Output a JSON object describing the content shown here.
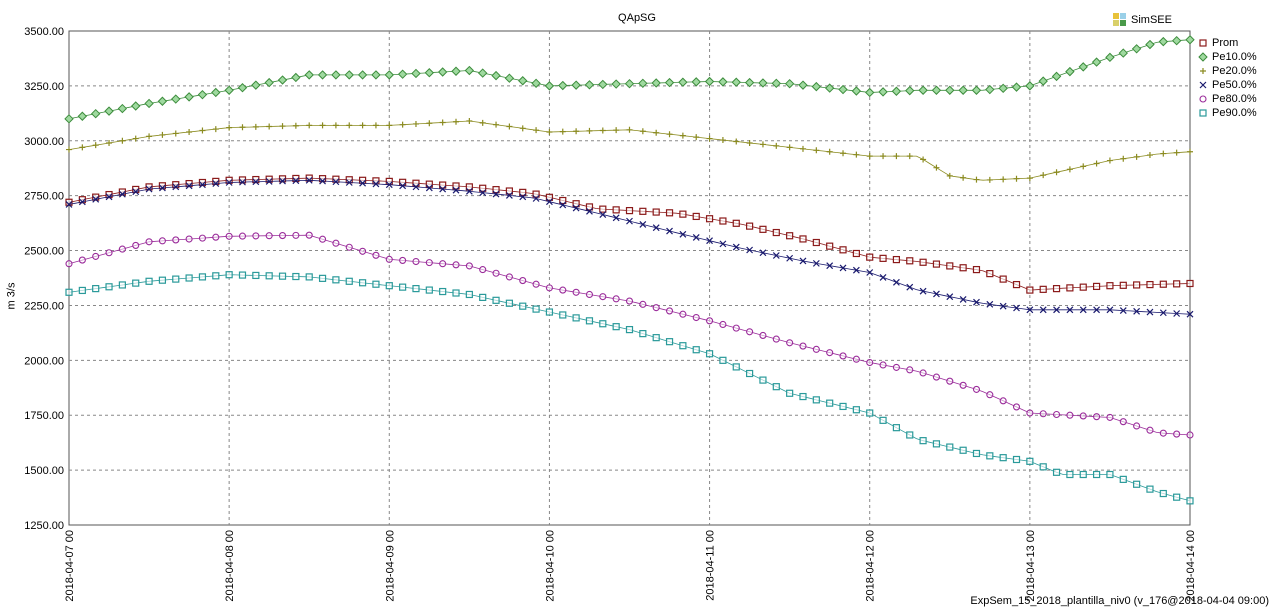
{
  "chart_data": {
    "type": "line",
    "title": "QApSG",
    "ylabel": "m 3/s",
    "xlabel": "",
    "ylim": [
      1250,
      3500
    ],
    "yticks": [
      "1250.00",
      "1500.00",
      "1750.00",
      "2000.00",
      "2250.00",
      "2500.00",
      "2750.00",
      "3000.00",
      "3250.00",
      "3500.00"
    ],
    "x_tick_labels": [
      "2018-04-07 00",
      "2018-04-08 00",
      "2018-04-09 00",
      "2018-04-10 00",
      "2018-04-11 00",
      "2018-04-12 00",
      "2018-04-13 00",
      "2018-04-14 00"
    ],
    "xlim_days": [
      0,
      7
    ],
    "grid": true,
    "legend_position": "right",
    "series": [
      {
        "name": "Prom",
        "color": "#8b1a1a",
        "marker": "square",
        "x": [
          0,
          0.5,
          1,
          1.5,
          2,
          2.5,
          2.9,
          3.3,
          3.8,
          4.2,
          4.6,
          5,
          5.3,
          5.7,
          6,
          6.5,
          7
        ],
        "y": [
          2720,
          2790,
          2820,
          2830,
          2815,
          2790,
          2760,
          2690,
          2670,
          2620,
          2550,
          2470,
          2450,
          2410,
          2320,
          2340,
          2350
        ]
      },
      {
        "name": "Pe10.0%",
        "color": "#3c8c3c",
        "marker": "diamond",
        "x": [
          0,
          0.5,
          1,
          1.5,
          2,
          2.5,
          3,
          3.5,
          4,
          4.5,
          5,
          5.3,
          5.7,
          6,
          6.5,
          6.8,
          7
        ],
        "y": [
          3100,
          3170,
          3230,
          3300,
          3300,
          3320,
          3250,
          3260,
          3270,
          3260,
          3220,
          3230,
          3230,
          3250,
          3380,
          3450,
          3460
        ]
      },
      {
        "name": "Pe20.0%",
        "color": "#8b8b20",
        "marker": "plus",
        "x": [
          0,
          0.5,
          1,
          1.5,
          2,
          2.5,
          3,
          3.5,
          4,
          4.5,
          5,
          5.3,
          5.5,
          5.7,
          6,
          6.5,
          6.8,
          7
        ],
        "y": [
          2960,
          3020,
          3060,
          3070,
          3070,
          3090,
          3040,
          3050,
          3010,
          2970,
          2930,
          2930,
          2840,
          2820,
          2830,
          2910,
          2940,
          2950
        ]
      },
      {
        "name": "Pe50.0%",
        "color": "#1a1a6e",
        "marker": "x",
        "x": [
          0,
          0.5,
          1,
          1.5,
          2,
          2.5,
          2.9,
          3.3,
          3.8,
          4.2,
          4.6,
          5,
          5.3,
          5.7,
          6,
          6.5,
          7
        ],
        "y": [
          2710,
          2780,
          2810,
          2820,
          2800,
          2770,
          2740,
          2670,
          2580,
          2510,
          2450,
          2400,
          2320,
          2260,
          2230,
          2230,
          2210
        ]
      },
      {
        "name": "Pe80.0%",
        "color": "#9a2b9a",
        "marker": "circle",
        "x": [
          0,
          0.5,
          1,
          1.5,
          2,
          2.5,
          3,
          3.5,
          4,
          4.5,
          5,
          5.3,
          5.7,
          6,
          6.5,
          6.8,
          7
        ],
        "y": [
          2440,
          2540,
          2565,
          2570,
          2460,
          2430,
          2330,
          2270,
          2180,
          2080,
          1990,
          1950,
          1860,
          1760,
          1740,
          1670,
          1660
        ]
      },
      {
        "name": "Pe90.0%",
        "color": "#2a9a9a",
        "marker": "square",
        "x": [
          0,
          0.5,
          1,
          1.5,
          2,
          2.5,
          3,
          3.5,
          4,
          4.5,
          5,
          5.3,
          5.7,
          6,
          6.2,
          6.5,
          6.8,
          7
        ],
        "y": [
          2310,
          2360,
          2390,
          2380,
          2340,
          2300,
          2220,
          2140,
          2030,
          1850,
          1760,
          1640,
          1570,
          1540,
          1480,
          1480,
          1400,
          1360
        ]
      }
    ]
  },
  "brand": "SimSEE",
  "footer": "ExpSem_15_2018_plantilla_niv0 (v_176@2018-04-04 09:00)"
}
